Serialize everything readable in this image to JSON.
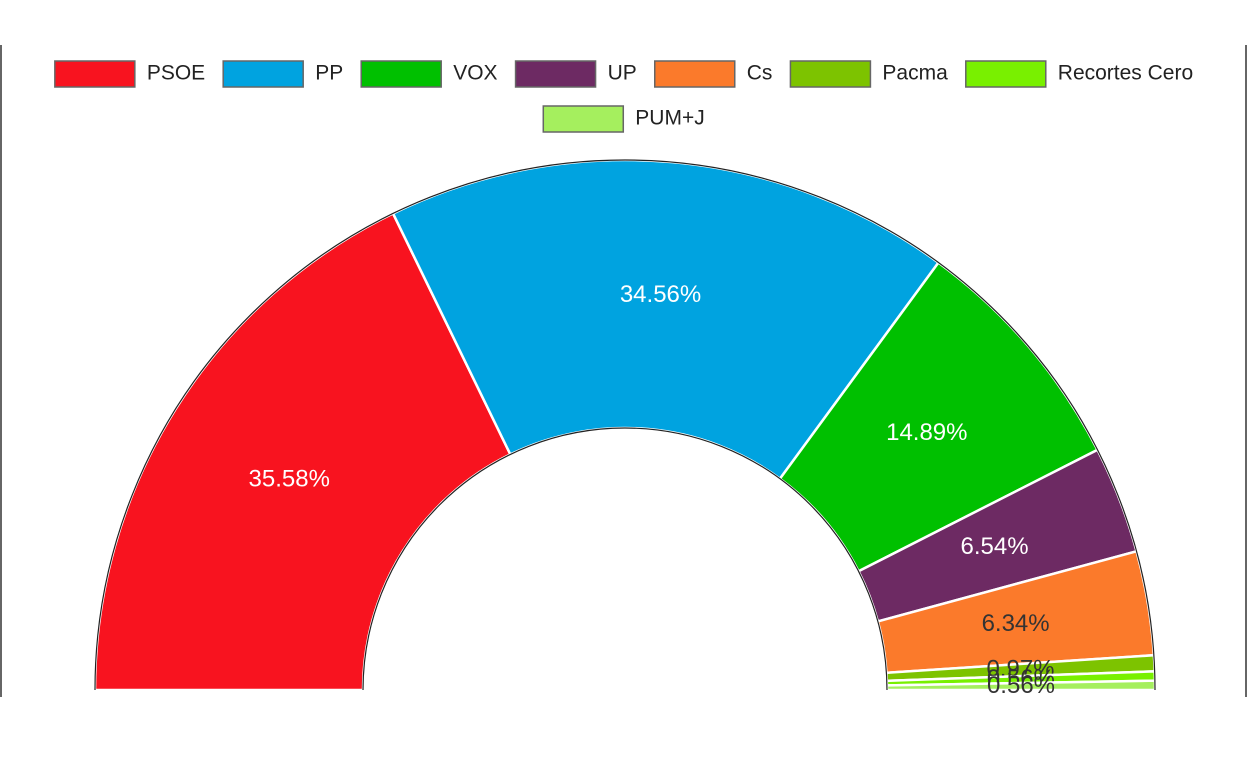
{
  "chart_data": {
    "type": "half-donut",
    "categories": [
      "PSOE",
      "PP",
      "VOX",
      "UP",
      "Cs",
      "Pacma",
      "Recortes Cero",
      "PUM+J"
    ],
    "values": [
      35.58,
      34.56,
      14.89,
      6.54,
      6.34,
      0.97,
      0.56,
      0.56
    ],
    "value_labels": [
      "35.58%",
      "34.56%",
      "14.89%",
      "6.54%",
      "6.34%",
      "0.97%",
      "0.56%",
      "0.56%"
    ],
    "colors": [
      "#f8131f",
      "#00a3e0",
      "#00c000",
      "#6d2a63",
      "#fb7a2b",
      "#7dc300",
      "#79f000",
      "#a5ef5e"
    ],
    "label_colors": [
      "#ffffff",
      "#ffffff",
      "#ffffff",
      "#ffffff",
      "#333333",
      "#333333",
      "#333333",
      "#333333"
    ],
    "legend": "top"
  }
}
